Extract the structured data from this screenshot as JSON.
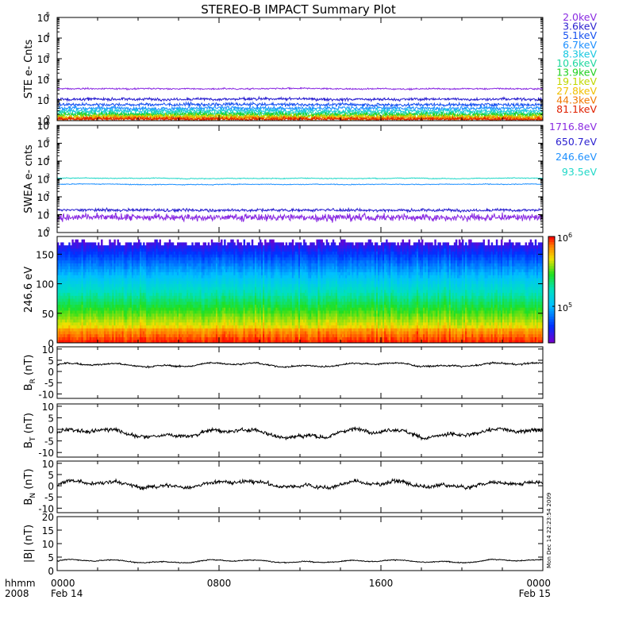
{
  "title": "STEREO-B IMPACT Summary Plot",
  "side_stamp": "Mon Dec 14 22:23:54 2009",
  "time_axis": {
    "row_label_1": "hhmm",
    "row_label_2": "2008",
    "ticks": [
      {
        "t": 0,
        "label": "0000",
        "date": "Feb 14"
      },
      {
        "t": 8,
        "label": "0800",
        "date": ""
      },
      {
        "t": 16,
        "label": "1600",
        "date": ""
      },
      {
        "t": 24,
        "label": "0000",
        "date": "Feb 15"
      }
    ],
    "minor_tick_hours": 2
  },
  "chart_data": [
    {
      "id": "ste",
      "type": "line",
      "ylabel": "STE e- Cnts",
      "yscale": "log",
      "ylim": [
        1,
        100000
      ],
      "yticks": [
        {
          "v": 1,
          "label": "10",
          "exp": "0"
        },
        {
          "v": 10,
          "label": "10",
          "exp": "1"
        },
        {
          "v": 100,
          "label": "10",
          "exp": "2"
        },
        {
          "v": 1000,
          "label": "10",
          "exp": "3"
        },
        {
          "v": 10000,
          "label": "10",
          "exp": "4"
        },
        {
          "v": 100000,
          "label": "10",
          "exp": "5"
        }
      ],
      "series": [
        {
          "name": "2.0keV",
          "color": "#8a2be2",
          "level": 35,
          "noise": 0.05
        },
        {
          "name": "3.6keV",
          "color": "#2a1fd0",
          "level": 11,
          "noise": 0.1
        },
        {
          "name": "5.1keV",
          "color": "#1550f0",
          "level": 6,
          "noise": 0.12
        },
        {
          "name": "6.7keV",
          "color": "#1e90ff",
          "level": 4,
          "noise": 0.14
        },
        {
          "name": "8.3keV",
          "color": "#18c8e0",
          "level": 3,
          "noise": 0.16
        },
        {
          "name": "10.6keV",
          "color": "#20d8a0",
          "level": 2.3,
          "noise": 0.18
        },
        {
          "name": "13.9keV",
          "color": "#20d020",
          "level": 1.9,
          "noise": 0.18
        },
        {
          "name": "19.1keV",
          "color": "#c0d800",
          "level": 1.6,
          "noise": 0.18
        },
        {
          "name": "27.8keV",
          "color": "#f0c000",
          "level": 1.4,
          "noise": 0.18
        },
        {
          "name": "44.3keV",
          "color": "#f07800",
          "level": 1.3,
          "noise": 0.16
        },
        {
          "name": "81.1keV",
          "color": "#e02000",
          "level": 1.2,
          "noise": 0.14
        }
      ]
    },
    {
      "id": "swea",
      "type": "line",
      "ylabel": "SWEA e- cnts",
      "yscale": "log",
      "ylim": [
        1,
        1000000
      ],
      "yticks": [
        {
          "v": 1,
          "label": "10",
          "exp": "0"
        },
        {
          "v": 10,
          "label": "10",
          "exp": "1"
        },
        {
          "v": 100,
          "label": "10",
          "exp": "2"
        },
        {
          "v": 1000,
          "label": "10",
          "exp": "3"
        },
        {
          "v": 10000,
          "label": "10",
          "exp": "4"
        },
        {
          "v": 100000,
          "label": "10",
          "exp": "5"
        },
        {
          "v": 1000000,
          "label": "10",
          "exp": "6"
        }
      ],
      "series": [
        {
          "name": "1716.8eV",
          "color": "#8a2be2",
          "level": 7,
          "noise": 0.3
        },
        {
          "name": "650.7eV",
          "color": "#2a1fd0",
          "level": 18,
          "noise": 0.12
        },
        {
          "name": "246.6eV",
          "color": "#1e90ff",
          "level": 500,
          "noise": 0.03
        },
        {
          "name": "93.5eV",
          "color": "#20d8c8",
          "level": 1100,
          "noise": 0.03
        }
      ]
    },
    {
      "id": "pad",
      "type": "heatmap",
      "ylabel": "246.6 eV",
      "ylim": [
        0,
        180
      ],
      "yticks": [
        {
          "v": 0,
          "label": "0"
        },
        {
          "v": 50,
          "label": "50"
        },
        {
          "v": 100,
          "label": "100"
        },
        {
          "v": 150,
          "label": "150"
        }
      ],
      "colorbar": {
        "scale": "log",
        "range": [
          30000,
          1000000
        ],
        "ticks": [
          {
            "v": 100000,
            "label": "10",
            "exp": "5"
          },
          {
            "v": 1000000,
            "label": "10",
            "exp": "6"
          }
        ]
      }
    },
    {
      "id": "br",
      "type": "line",
      "ylabel": "B",
      "ysub": "R",
      "yunit": "(nT)",
      "ylim": [
        -12,
        11
      ],
      "yticks": [
        {
          "v": -10,
          "label": "-10"
        },
        {
          "v": -5,
          "label": "-5"
        },
        {
          "v": 0,
          "label": "0"
        },
        {
          "v": 5,
          "label": "5"
        },
        {
          "v": 10,
          "label": "10"
        }
      ],
      "series": [
        {
          "color": "#000000",
          "level": 3,
          "noise": 0.5
        }
      ]
    },
    {
      "id": "bt",
      "type": "line",
      "ylabel": "B",
      "ysub": "T",
      "yunit": "(nT)",
      "ylim": [
        -12,
        11
      ],
      "yticks": [
        {
          "v": -10,
          "label": "-10"
        },
        {
          "v": -5,
          "label": "-5"
        },
        {
          "v": 0,
          "label": "0"
        },
        {
          "v": 5,
          "label": "5"
        },
        {
          "v": 10,
          "label": "10"
        }
      ],
      "series": [
        {
          "color": "#000000",
          "level": -1.5,
          "noise": 1.2
        }
      ]
    },
    {
      "id": "bn",
      "type": "line",
      "ylabel": "B",
      "ysub": "N",
      "yunit": "(nT)",
      "ylim": [
        -12,
        11
      ],
      "yticks": [
        {
          "v": -10,
          "label": "-10"
        },
        {
          "v": -5,
          "label": "-5"
        },
        {
          "v": 0,
          "label": "0"
        },
        {
          "v": 5,
          "label": "5"
        },
        {
          "v": 10,
          "label": "10"
        }
      ],
      "series": [
        {
          "color": "#000000",
          "level": 0.5,
          "noise": 1.2
        }
      ]
    },
    {
      "id": "bmag",
      "type": "line",
      "ylabel": "|B| (nT)",
      "ylim": [
        0,
        20
      ],
      "yticks": [
        {
          "v": 0,
          "label": "0"
        },
        {
          "v": 5,
          "label": "5"
        },
        {
          "v": 10,
          "label": "10"
        },
        {
          "v": 15,
          "label": "15"
        },
        {
          "v": 20,
          "label": "20"
        }
      ],
      "series": [
        {
          "color": "#000000",
          "level": 3.5,
          "noise": 0.25
        }
      ]
    }
  ]
}
